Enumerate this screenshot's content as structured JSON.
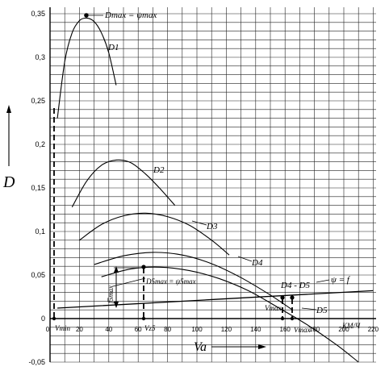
{
  "chart_data": {
    "type": "line",
    "y_axis_title": "D",
    "x_axis_title": "Va",
    "x_unit": "км/ч",
    "xlim": [
      0,
      220
    ],
    "ylim": [
      -0.05,
      0.35
    ],
    "x_ticks": [
      "0",
      "20",
      "40",
      "60",
      "80",
      "100",
      "120",
      "140",
      "160",
      "180",
      "200",
      "220"
    ],
    "y_ticks": [
      "0,35",
      "0,3",
      "0,25",
      "0,2",
      "0,15",
      "0,1",
      "0,05",
      "0",
      "-0,05"
    ],
    "series": [
      {
        "name": "D1",
        "x": [
          5,
          10,
          15,
          20,
          25,
          30,
          35,
          40,
          45
        ],
        "y": [
          0.23,
          0.295,
          0.328,
          0.342,
          0.345,
          0.341,
          0.328,
          0.305,
          0.268
        ]
      },
      {
        "name": "D2",
        "x": [
          15,
          25,
          35,
          45,
          55,
          65,
          75,
          85
        ],
        "y": [
          0.128,
          0.158,
          0.176,
          0.182,
          0.179,
          0.166,
          0.149,
          0.13
        ]
      },
      {
        "name": "D3",
        "x": [
          20,
          35,
          50,
          65,
          80,
          95,
          110,
          122
        ],
        "y": [
          0.09,
          0.108,
          0.118,
          0.121,
          0.117,
          0.107,
          0.09,
          0.073
        ]
      },
      {
        "name": "D4",
        "x": [
          30,
          50,
          70,
          90,
          110,
          130,
          150,
          165
        ],
        "y": [
          0.062,
          0.072,
          0.076,
          0.073,
          0.063,
          0.047,
          0.027,
          0.01
        ]
      },
      {
        "name": "D5",
        "x": [
          35,
          55,
          75,
          95,
          115,
          135,
          155,
          175,
          195,
          210
        ],
        "y": [
          0.048,
          0.057,
          0.059,
          0.055,
          0.046,
          0.032,
          0.013,
          -0.007,
          -0.03,
          -0.05
        ]
      },
      {
        "name": "ψ = f",
        "x": [
          5,
          220
        ],
        "y": [
          0.012,
          0.032
        ]
      }
    ],
    "points": [
      {
        "label": "Dmax = ψmax",
        "x": 25,
        "y": 0.345
      },
      {
        "label": "D5max = ψ5max",
        "x": 63,
        "y": 0.059
      }
    ],
    "labels": {
      "d1": "D1",
      "d2": "D2",
      "d3": "D3",
      "d4": "D4",
      "d5": "D5",
      "d4_d5": "D4 - D5",
      "psi": "ψ = f",
      "dmax": "Dmax = ψmax",
      "d5max": "D5max = ψ5max",
      "f5max": "f5max",
      "vmin": "Vmin",
      "vz5": "Vz5",
      "vmax1": "Vmax",
      "vmax2": "Vmax",
      "unit": "КМ/Ч"
    },
    "grid": true
  }
}
